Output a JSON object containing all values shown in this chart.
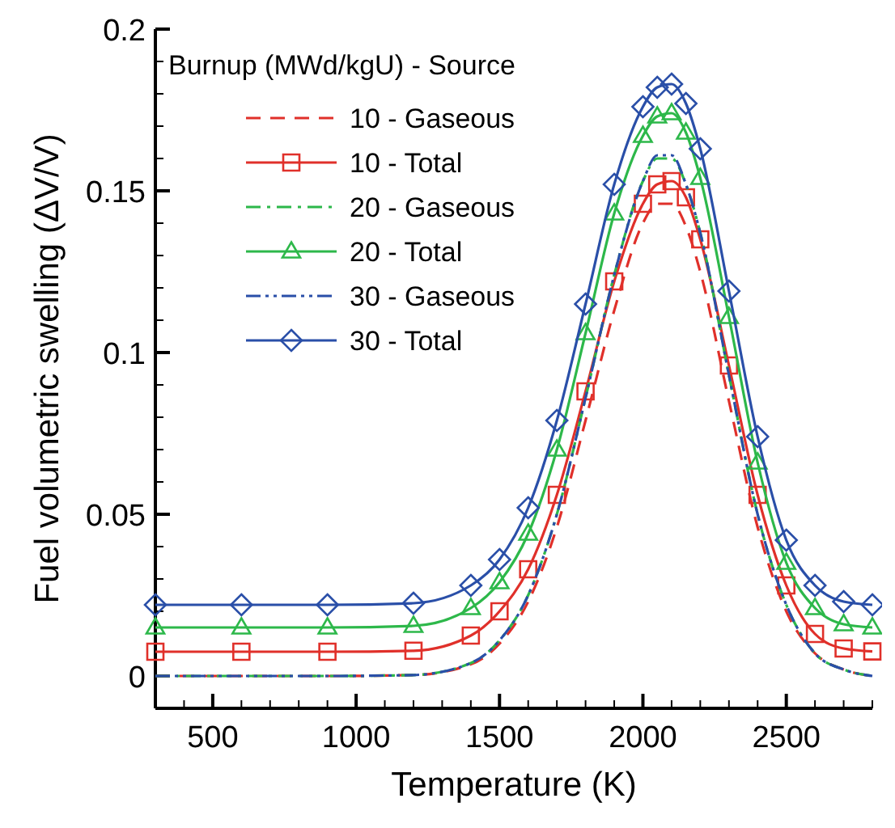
{
  "chart_data": {
    "type": "line",
    "xlabel": "Temperature (K)",
    "ylabel": "Fuel volumetric swelling (ΔV/V)",
    "legend_title": "Burnup (MWd/kgU) - Source",
    "legend": "top left",
    "grid": false,
    "x": [
      300,
      600,
      900,
      1200,
      1400,
      1500,
      1600,
      1700,
      1800,
      1900,
      2000,
      2050,
      2100,
      2150,
      2200,
      2300,
      2400,
      2500,
      2600,
      2700,
      2800
    ],
    "xlim": [
      300,
      2800
    ],
    "ylim": [
      -0.01,
      0.2
    ],
    "xticks": [
      {
        "value": 400,
        "label": null
      },
      500,
      {
        "value": 600,
        "label": null
      },
      {
        "value": 700,
        "label": null
      },
      {
        "value": 800,
        "label": null
      },
      {
        "value": 900,
        "label": null
      },
      1000,
      {
        "value": 1100,
        "label": null
      },
      {
        "value": 1200,
        "label": null
      },
      {
        "value": 1300,
        "label": null
      },
      {
        "value": 1400,
        "label": null
      },
      1500,
      {
        "value": 1600,
        "label": null
      },
      {
        "value": 1700,
        "label": null
      },
      {
        "value": 1800,
        "label": null
      },
      {
        "value": 1900,
        "label": null
      },
      2000,
      {
        "value": 2100,
        "label": null
      },
      {
        "value": 2200,
        "label": null
      },
      {
        "value": 2300,
        "label": null
      },
      {
        "value": 2400,
        "label": null
      },
      2500,
      {
        "value": 2600,
        "label": null
      },
      {
        "value": 2700,
        "label": null
      },
      {
        "value": 2800,
        "label": null
      }
    ],
    "yticks": [
      0,
      {
        "value": 0.01,
        "label": null
      },
      {
        "value": 0.02,
        "label": null
      },
      {
        "value": 0.03,
        "label": null
      },
      {
        "value": 0.04,
        "label": null
      },
      0.05,
      {
        "value": 0.06,
        "label": null
      },
      {
        "value": 0.07,
        "label": null
      },
      {
        "value": 0.08,
        "label": null
      },
      {
        "value": 0.09,
        "label": null
      },
      0.1,
      {
        "value": 0.11,
        "label": null
      },
      {
        "value": 0.12,
        "label": null
      },
      {
        "value": 0.13,
        "label": null
      },
      {
        "value": 0.14,
        "label": null
      },
      0.15,
      {
        "value": 0.16,
        "label": null
      },
      {
        "value": 0.17,
        "label": null
      },
      {
        "value": 0.18,
        "label": null
      },
      {
        "value": 0.19,
        "label": null
      },
      0.2
    ],
    "series": [
      {
        "name": "10 - Gaseous",
        "color": "#e0302a",
        "line_style": "dashed",
        "marker": "none",
        "values": [
          0,
          0,
          0,
          0.0003,
          0.0036,
          0.01,
          0.023,
          0.046,
          0.079,
          0.113,
          0.14,
          0.146,
          0.146,
          0.139,
          0.125,
          0.085,
          0.046,
          0.02,
          0.007,
          0.002,
          0
        ]
      },
      {
        "name": "10 - Total",
        "color": "#e0302a",
        "line_style": "solid",
        "marker": "square",
        "values": [
          0.0075,
          0.0075,
          0.0075,
          0.0078,
          0.0125,
          0.02,
          0.033,
          0.056,
          0.088,
          0.122,
          0.146,
          0.152,
          0.153,
          0.148,
          0.135,
          0.096,
          0.056,
          0.028,
          0.013,
          0.0085,
          0.0076
        ]
      },
      {
        "name": "20 - Gaseous",
        "color": "#2db84a",
        "line_style": "dashdot",
        "marker": "none",
        "values": [
          0,
          0,
          0,
          0.0003,
          0.004,
          0.011,
          0.025,
          0.05,
          0.086,
          0.124,
          0.153,
          0.16,
          0.16,
          0.152,
          0.137,
          0.093,
          0.05,
          0.022,
          0.007,
          0.002,
          0
        ]
      },
      {
        "name": "20 - Total",
        "color": "#2db84a",
        "line_style": "solid",
        "marker": "triangle",
        "values": [
          0.015,
          0.015,
          0.015,
          0.0155,
          0.021,
          0.029,
          0.044,
          0.07,
          0.106,
          0.143,
          0.167,
          0.173,
          0.174,
          0.168,
          0.154,
          0.111,
          0.066,
          0.035,
          0.021,
          0.016,
          0.015
        ]
      },
      {
        "name": "30 - Gaseous",
        "color": "#2a4fa8",
        "line_style": "dashdotdot",
        "marker": "none",
        "values": [
          0,
          0,
          0,
          0.0003,
          0.004,
          0.011,
          0.025,
          0.05,
          0.086,
          0.124,
          0.153,
          0.161,
          0.161,
          0.152,
          0.137,
          0.093,
          0.05,
          0.022,
          0.007,
          0.002,
          0
        ]
      },
      {
        "name": "30 - Total",
        "color": "#2a4fa8",
        "line_style": "solid",
        "marker": "diamond",
        "values": [
          0.022,
          0.022,
          0.022,
          0.0225,
          0.028,
          0.036,
          0.052,
          0.079,
          0.115,
          0.152,
          0.176,
          0.182,
          0.183,
          0.177,
          0.163,
          0.119,
          0.074,
          0.042,
          0.028,
          0.023,
          0.022
        ]
      }
    ]
  }
}
